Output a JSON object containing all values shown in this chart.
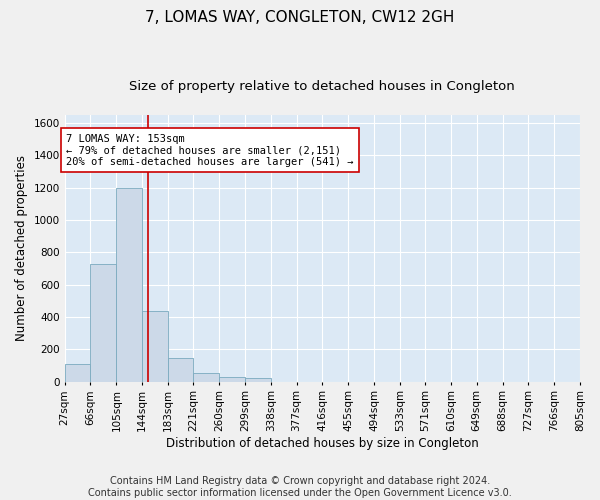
{
  "title": "7, LOMAS WAY, CONGLETON, CW12 2GH",
  "subtitle": "Size of property relative to detached houses in Congleton",
  "xlabel": "Distribution of detached houses by size in Congleton",
  "ylabel": "Number of detached properties",
  "footer_line1": "Contains HM Land Registry data © Crown copyright and database right 2024.",
  "footer_line2": "Contains public sector information licensed under the Open Government Licence v3.0.",
  "bin_edges": [
    27,
    66,
    105,
    144,
    183,
    221,
    260,
    299,
    338,
    377,
    416,
    455,
    494,
    533,
    571,
    610,
    649,
    688,
    727,
    766,
    805
  ],
  "bin_counts": [
    110,
    730,
    1200,
    435,
    145,
    55,
    30,
    20,
    0,
    0,
    0,
    0,
    0,
    0,
    0,
    0,
    0,
    0,
    0,
    0
  ],
  "bar_color": "#ccd9e8",
  "bar_edge_color": "#7aaabf",
  "property_line_x": 153,
  "property_line_color": "#cc0000",
  "annotation_line1": "7 LOMAS WAY: 153sqm",
  "annotation_line2": "← 79% of detached houses are smaller (2,151)",
  "annotation_line3": "20% of semi-detached houses are larger (541) →",
  "annotation_box_color": "#ffffff",
  "annotation_box_edge_color": "#cc0000",
  "ylim": [
    0,
    1650
  ],
  "yticks": [
    0,
    200,
    400,
    600,
    800,
    1000,
    1200,
    1400,
    1600
  ],
  "fig_background_color": "#f0f0f0",
  "plot_background_color": "#dce9f5",
  "grid_color": "#ffffff",
  "title_fontsize": 11,
  "subtitle_fontsize": 9.5,
  "label_fontsize": 8.5,
  "tick_fontsize": 7.5,
  "footer_fontsize": 7,
  "annotation_fontsize": 7.5
}
